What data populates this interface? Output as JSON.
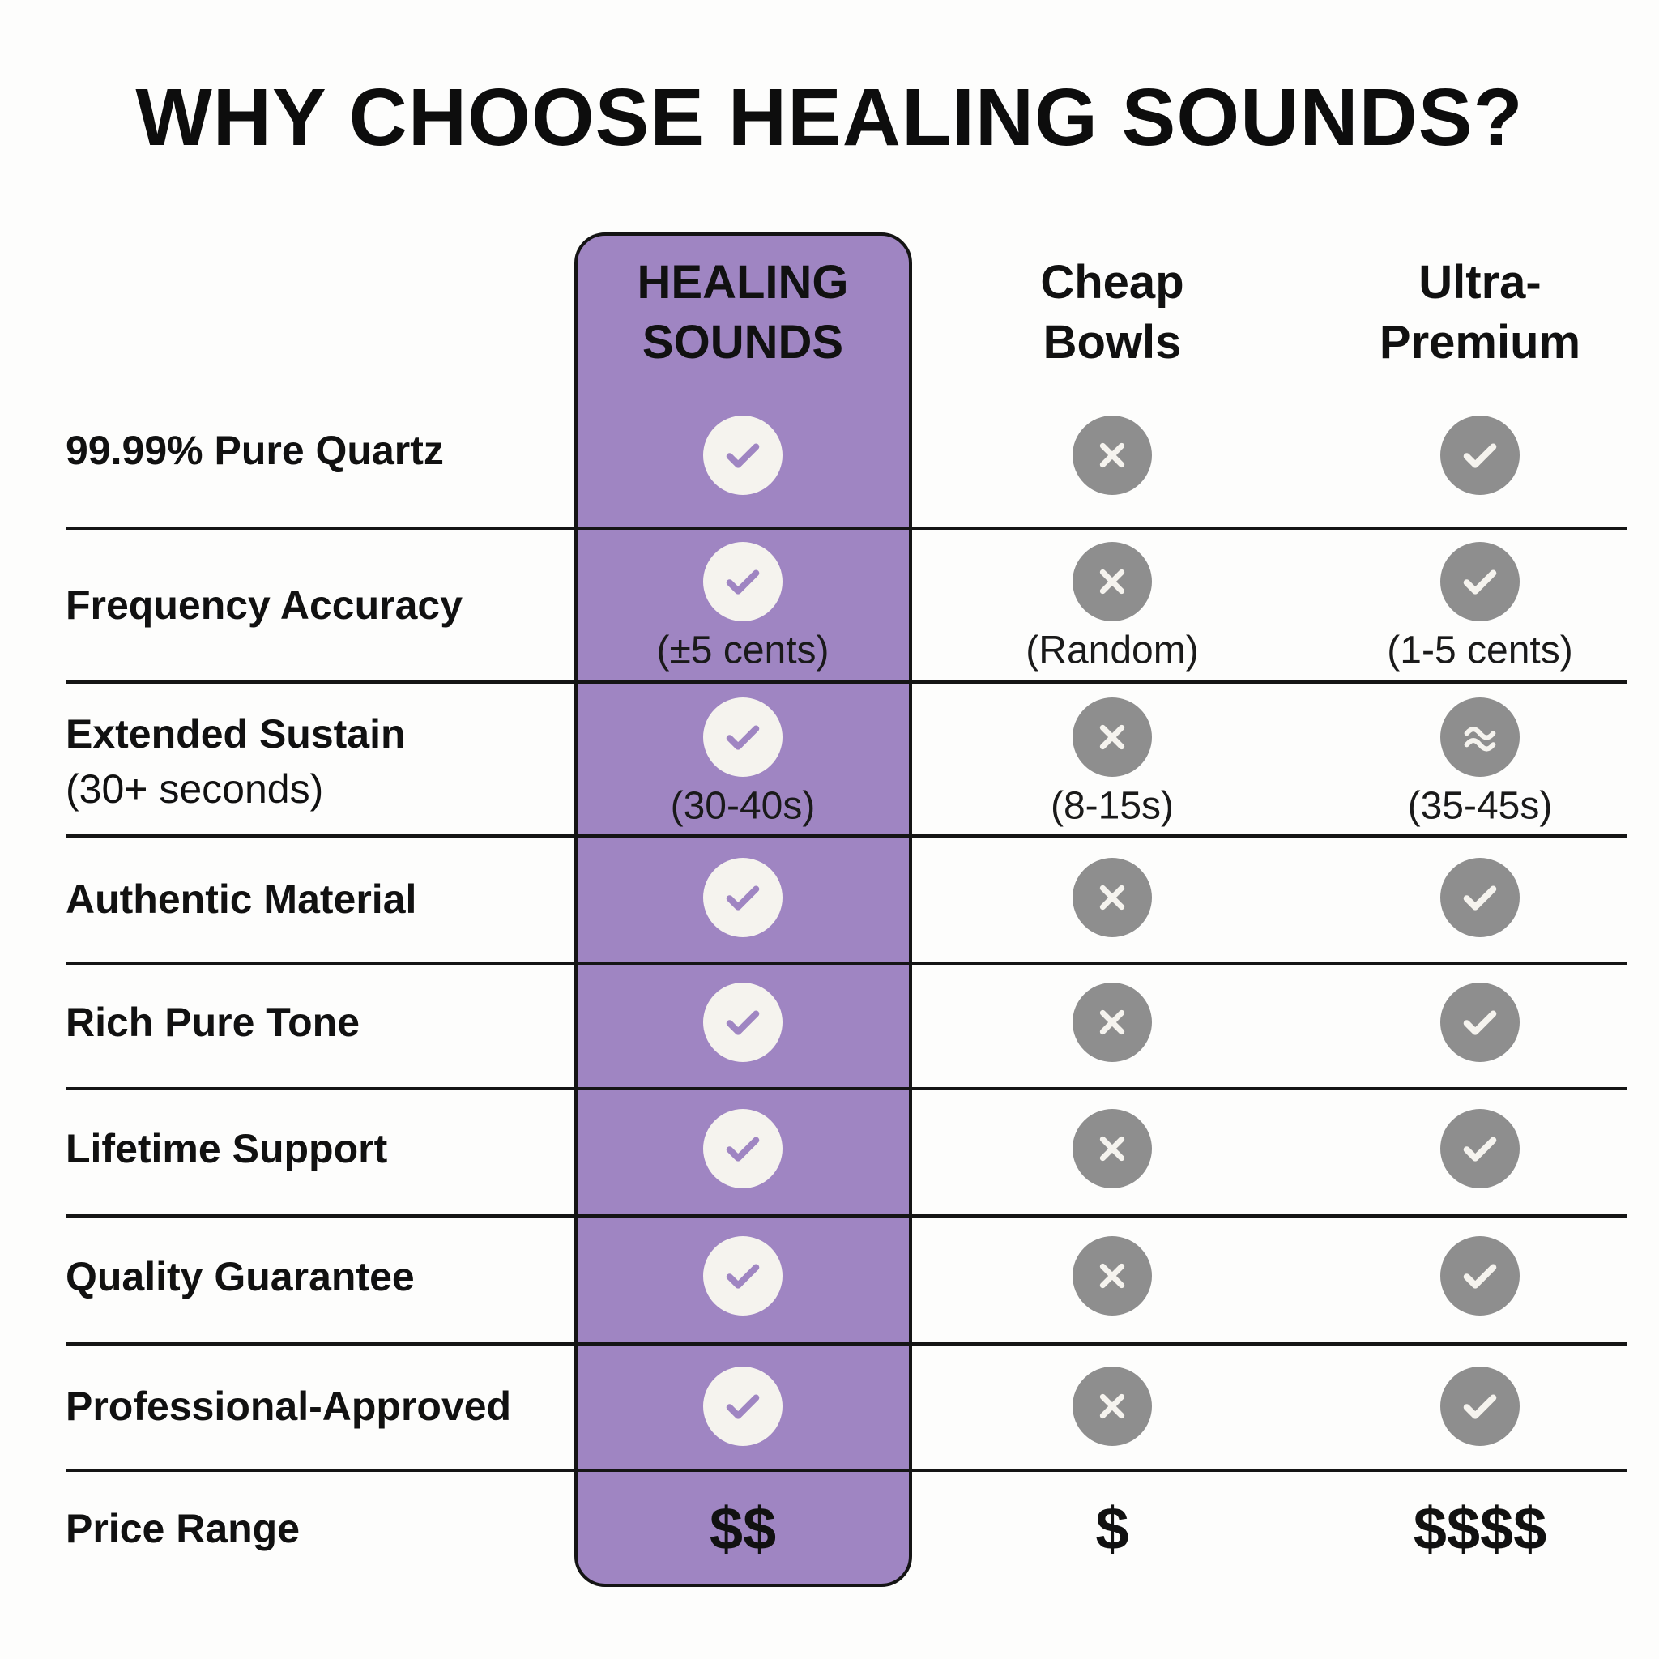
{
  "title": "WHY CHOOSE HEALING SOUNDS?",
  "colors": {
    "highlight_column": "#9f85c2",
    "icon_grey": "#8e8e8e",
    "icon_light": "#f5f3ee"
  },
  "columns": [
    {
      "line1": "HEALING",
      "line2": "SOUNDS"
    },
    {
      "line1": "Cheap",
      "line2": "Bowls"
    },
    {
      "line1": "Ultra-",
      "line2": "Premium"
    }
  ],
  "rows": [
    {
      "label": "99.99% Pure Quartz",
      "cells": [
        {
          "icon": "check-icon"
        },
        {
          "icon": "x-icon"
        },
        {
          "icon": "check-icon"
        }
      ]
    },
    {
      "label": "Frequency Accuracy",
      "cells": [
        {
          "icon": "check-icon",
          "note": "(±5 cents)"
        },
        {
          "icon": "x-icon",
          "note": "(Random)"
        },
        {
          "icon": "check-icon",
          "note": "(1-5 cents)"
        }
      ]
    },
    {
      "label": "Extended Sustain",
      "sublabel": "(30+ seconds)",
      "cells": [
        {
          "icon": "check-icon",
          "note": "(30-40s)"
        },
        {
          "icon": "x-icon",
          "note": "(8-15s)"
        },
        {
          "icon": "approx-icon",
          "note": "(35-45s)"
        }
      ]
    },
    {
      "label": "Authentic Material",
      "cells": [
        {
          "icon": "check-icon"
        },
        {
          "icon": "x-icon"
        },
        {
          "icon": "check-icon"
        }
      ]
    },
    {
      "label": "Rich Pure Tone",
      "cells": [
        {
          "icon": "check-icon"
        },
        {
          "icon": "x-icon"
        },
        {
          "icon": "check-icon"
        }
      ]
    },
    {
      "label": "Lifetime Support",
      "cells": [
        {
          "icon": "check-icon"
        },
        {
          "icon": "x-icon"
        },
        {
          "icon": "check-icon"
        }
      ]
    },
    {
      "label": "Quality Guarantee",
      "cells": [
        {
          "icon": "check-icon"
        },
        {
          "icon": "x-icon"
        },
        {
          "icon": "check-icon"
        }
      ]
    },
    {
      "label": "Professional-Approved",
      "cells": [
        {
          "icon": "check-icon"
        },
        {
          "icon": "x-icon"
        },
        {
          "icon": "check-icon"
        }
      ]
    }
  ],
  "price_row": {
    "label": "Price Range",
    "values": [
      "$$",
      "$",
      "$$$$"
    ]
  }
}
